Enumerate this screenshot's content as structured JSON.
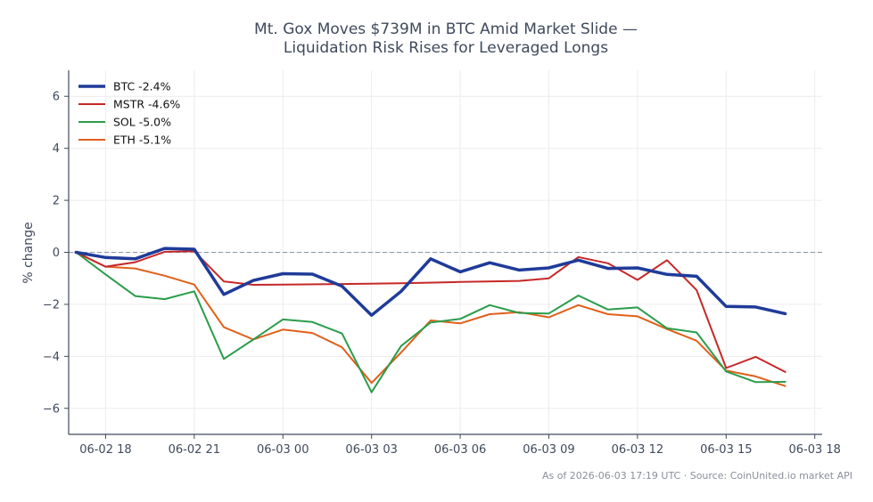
{
  "chart_data": {
    "type": "line",
    "title_lines": [
      "Mt. Gox Moves $739M in BTC Amid Market Slide —",
      "Liquidation Risk Rises for Leveraged Longs"
    ],
    "xlabel": "",
    "ylabel": "% change",
    "ylim": [
      -7,
      7
    ],
    "yticks": [
      6,
      4,
      2,
      0,
      -2,
      -4,
      -6
    ],
    "xlim": [
      "06-02 16:45",
      "06-03 18:15"
    ],
    "xticks": [
      {
        "label": "06-02 18",
        "t": "06-02 18:00"
      },
      {
        "label": "06-02 21",
        "t": "06-02 21:00"
      },
      {
        "label": "06-03 00",
        "t": "06-03 00:00"
      },
      {
        "label": "06-03 03",
        "t": "06-03 03:00"
      },
      {
        "label": "06-03 06",
        "t": "06-03 06:00"
      },
      {
        "label": "06-03 09",
        "t": "06-03 09:00"
      },
      {
        "label": "06-03 12",
        "t": "06-03 12:00"
      },
      {
        "label": "06-03 15",
        "t": "06-03 15:00"
      },
      {
        "label": "06-03 18",
        "t": "06-03 18:00"
      }
    ],
    "grid": true,
    "zero_line": true,
    "legend_position": "top-left",
    "footnote": "As of 2026-06-03 17:19 UTC · Source: CoinUnited.io market API",
    "colors": {
      "grid": "#ececec",
      "axis": "#3f4a5c",
      "zero_line": "#8b97ab"
    },
    "series": [
      {
        "name": "BTC -2.4%",
        "color": "#1f3b99",
        "line_width": 3.5,
        "points": [
          [
            "06-02 17:00",
            0.0
          ],
          [
            "06-02 18:00",
            -0.2
          ],
          [
            "06-02 19:00",
            -0.25
          ],
          [
            "06-02 20:00",
            0.15
          ],
          [
            "06-02 21:00",
            0.12
          ],
          [
            "06-02 22:00",
            -1.62
          ],
          [
            "06-02 23:00",
            -1.08
          ],
          [
            "06-03 00:00",
            -0.82
          ],
          [
            "06-03 01:00",
            -0.84
          ],
          [
            "06-03 02:00",
            -1.3
          ],
          [
            "06-03 03:00",
            -2.42
          ],
          [
            "06-03 04:00",
            -1.5
          ],
          [
            "06-03 05:00",
            -0.25
          ],
          [
            "06-03 06:00",
            -0.75
          ],
          [
            "06-03 07:00",
            -0.4
          ],
          [
            "06-03 08:00",
            -0.68
          ],
          [
            "06-03 09:00",
            -0.6
          ],
          [
            "06-03 10:00",
            -0.3
          ],
          [
            "06-03 11:00",
            -0.62
          ],
          [
            "06-03 12:00",
            -0.6
          ],
          [
            "06-03 13:00",
            -0.85
          ],
          [
            "06-03 14:00",
            -0.92
          ],
          [
            "06-03 15:00",
            -2.08
          ],
          [
            "06-03 16:00",
            -2.1
          ],
          [
            "06-03 17:00",
            -2.36
          ]
        ]
      },
      {
        "name": "MSTR -4.6%",
        "color": "#c62828",
        "line_width": 2,
        "points": [
          [
            "06-02 17:00",
            0.0
          ],
          [
            "06-02 18:00",
            -0.55
          ],
          [
            "06-02 19:00",
            -0.38
          ],
          [
            "06-02 20:00",
            0.02
          ],
          [
            "06-02 21:00",
            0.04
          ],
          [
            "06-02 22:00",
            -1.12
          ],
          [
            "06-02 23:00",
            -1.25
          ],
          [
            "06-03 00:00",
            -1.24
          ],
          [
            "06-03 02:00",
            -1.22
          ],
          [
            "06-03 04:00",
            -1.19
          ],
          [
            "06-03 06:00",
            -1.14
          ],
          [
            "06-03 08:00",
            -1.1
          ],
          [
            "06-03 09:00",
            -1.0
          ],
          [
            "06-03 10:00",
            -0.18
          ],
          [
            "06-03 11:00",
            -0.42
          ],
          [
            "06-03 12:00",
            -1.06
          ],
          [
            "06-03 13:00",
            -0.3
          ],
          [
            "06-03 14:00",
            -1.45
          ],
          [
            "06-03 15:00",
            -4.45
          ],
          [
            "06-03 16:00",
            -4.02
          ],
          [
            "06-03 17:00",
            -4.6
          ]
        ]
      },
      {
        "name": "SOL -5.0%",
        "color": "#2a9d4b",
        "line_width": 2,
        "points": [
          [
            "06-02 17:00",
            0.0
          ],
          [
            "06-02 18:00",
            -0.85
          ],
          [
            "06-02 19:00",
            -1.68
          ],
          [
            "06-02 20:00",
            -1.8
          ],
          [
            "06-02 21:00",
            -1.5
          ],
          [
            "06-02 22:00",
            -4.1
          ],
          [
            "06-02 23:00",
            -3.35
          ],
          [
            "06-03 00:00",
            -2.58
          ],
          [
            "06-03 01:00",
            -2.68
          ],
          [
            "06-03 02:00",
            -3.12
          ],
          [
            "06-03 03:00",
            -5.38
          ],
          [
            "06-03 04:00",
            -3.6
          ],
          [
            "06-03 05:00",
            -2.7
          ],
          [
            "06-03 06:00",
            -2.56
          ],
          [
            "06-03 07:00",
            -2.03
          ],
          [
            "06-03 08:00",
            -2.33
          ],
          [
            "06-03 09:00",
            -2.35
          ],
          [
            "06-03 10:00",
            -1.66
          ],
          [
            "06-03 11:00",
            -2.2
          ],
          [
            "06-03 12:00",
            -2.12
          ],
          [
            "06-03 13:00",
            -2.92
          ],
          [
            "06-03 14:00",
            -3.08
          ],
          [
            "06-03 15:00",
            -4.58
          ],
          [
            "06-03 16:00",
            -4.99
          ],
          [
            "06-03 17:00",
            -4.98
          ]
        ]
      },
      {
        "name": "ETH -5.1%",
        "color": "#e0601b",
        "line_width": 2,
        "points": [
          [
            "06-02 17:00",
            0.0
          ],
          [
            "06-02 18:00",
            -0.55
          ],
          [
            "06-02 19:00",
            -0.62
          ],
          [
            "06-02 20:00",
            -0.9
          ],
          [
            "06-02 21:00",
            -1.24
          ],
          [
            "06-02 22:00",
            -2.88
          ],
          [
            "06-02 23:00",
            -3.35
          ],
          [
            "06-03 00:00",
            -2.97
          ],
          [
            "06-03 01:00",
            -3.1
          ],
          [
            "06-03 02:00",
            -3.65
          ],
          [
            "06-03 03:00",
            -5.02
          ],
          [
            "06-03 04:00",
            -3.85
          ],
          [
            "06-03 05:00",
            -2.62
          ],
          [
            "06-03 06:00",
            -2.73
          ],
          [
            "06-03 07:00",
            -2.38
          ],
          [
            "06-03 08:00",
            -2.3
          ],
          [
            "06-03 09:00",
            -2.5
          ],
          [
            "06-03 10:00",
            -2.03
          ],
          [
            "06-03 11:00",
            -2.38
          ],
          [
            "06-03 12:00",
            -2.46
          ],
          [
            "06-03 13:00",
            -2.95
          ],
          [
            "06-03 14:00",
            -3.4
          ],
          [
            "06-03 15:00",
            -4.55
          ],
          [
            "06-03 16:00",
            -4.77
          ],
          [
            "06-03 17:00",
            -5.14
          ]
        ]
      }
    ]
  }
}
